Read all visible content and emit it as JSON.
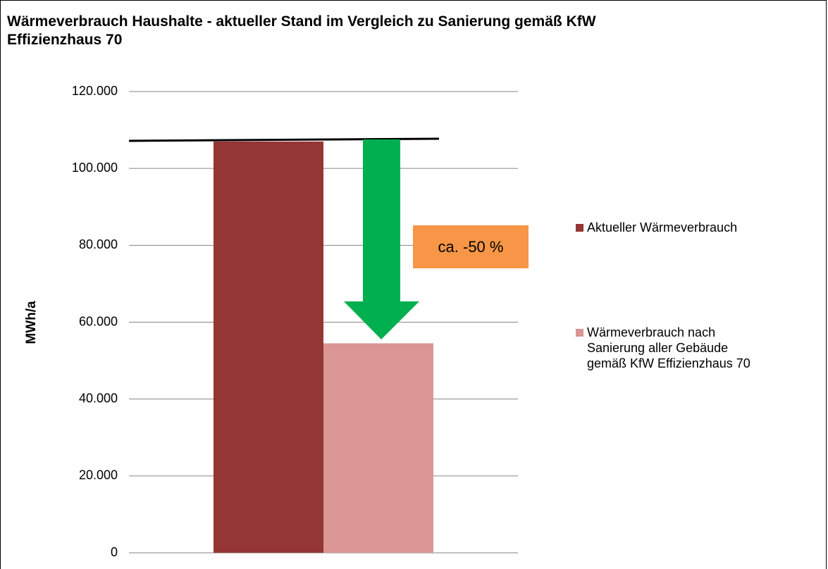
{
  "chart_data": {
    "type": "bar",
    "title": "Wärmeverbrauch Haushalte - aktueller Stand im Vergleich zu Sanierung gemäß KfW Effizienzhaus 70",
    "y_label": "MWh/a",
    "annotation": "ca. -50 %",
    "categories": [
      null
    ],
    "series": [
      {
        "name": "Aktueller Wärmeverbrauch",
        "color": "#943634",
        "values": [
          107000
        ]
      },
      {
        "name": "Wärmeverbrauch nach Sanierung aller Gebäude gemäß KfW Effizienzhaus 70",
        "color": "#d99694",
        "values": [
          54500
        ]
      }
    ],
    "ylim": [
      0,
      120000
    ],
    "yticks": [
      0,
      {
        "value": 20000,
        "label": "20.000"
      },
      {
        "value": 40000,
        "label": "40.000"
      },
      {
        "value": 60000,
        "label": "60.000"
      },
      {
        "value": 80000,
        "label": "80.000"
      },
      {
        "value": 100000,
        "label": "100.000"
      },
      {
        "value": 120000,
        "label": "120.000"
      }
    ],
    "grid": true,
    "legend": "right"
  }
}
